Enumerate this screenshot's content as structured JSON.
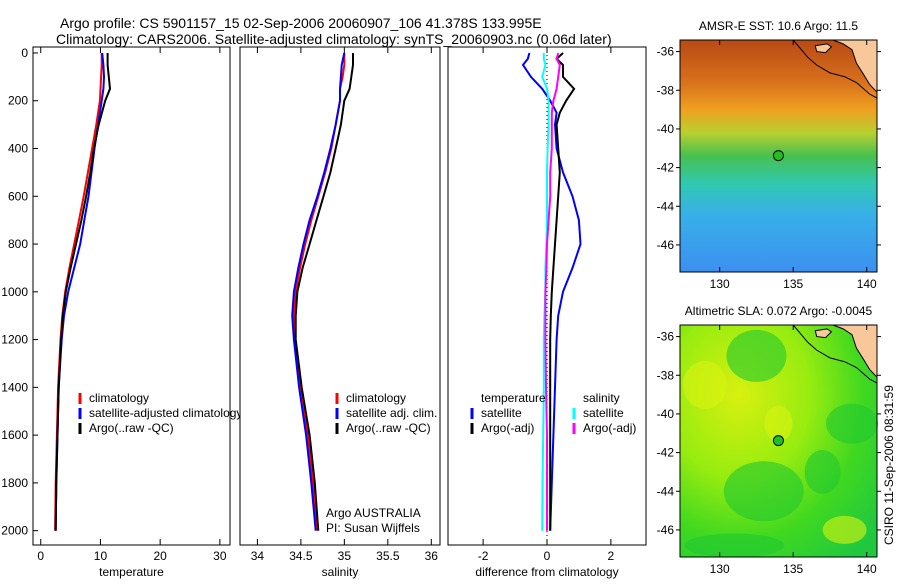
{
  "header": {
    "title_line1": "Argo profile: CS 5901157_15 02-Sep-2006 20060907_106 41.378S 133.995E",
    "title_line2": "Climatology: CARS2006. Satellite-adjusted climatology: synTS_20060903.nc (0.06d later)"
  },
  "footer": {
    "stamp": "CSIRO 11-Sep-2006 08:31:59"
  },
  "annotation": {
    "line1": "Argo AUSTRALIA",
    "line2": "PI: Susan Wijffels"
  },
  "chart_data": [
    {
      "type": "line",
      "id": "temperature",
      "xlabel": "temperature",
      "ylabel": "",
      "xlim": [
        -1.3,
        31.7
      ],
      "ylim": [
        2060,
        -25
      ],
      "xticks": [
        0,
        10,
        20,
        30
      ],
      "yticks": [
        0,
        200,
        400,
        600,
        800,
        1000,
        1200,
        1400,
        1600,
        1800,
        2000
      ],
      "depth": [
        0,
        50,
        100,
        150,
        200,
        300,
        400,
        500,
        600,
        700,
        800,
        900,
        1000,
        1100,
        1200,
        1400,
        1600,
        1800,
        2000
      ],
      "series": [
        {
          "name": "climatology",
          "color": "#ff0000",
          "values": [
            10.2,
            10.2,
            10.1,
            10.0,
            9.9,
            9.3,
            8.6,
            7.9,
            7.2,
            6.4,
            5.6,
            4.8,
            4.1,
            3.6,
            3.3,
            2.9,
            2.7,
            2.5,
            2.4
          ]
        },
        {
          "name": "satellite-adjusted climatology",
          "color": "#0000ff",
          "values": [
            10.3,
            10.5,
            10.6,
            10.5,
            10.2,
            9.6,
            9.0,
            8.5,
            8.0,
            7.3,
            6.6,
            5.6,
            4.6,
            3.9,
            3.5,
            3.0,
            2.8,
            2.6,
            2.5
          ]
        },
        {
          "name": "Argo(..raw -QC)",
          "color": "#000000",
          "values": [
            11.2,
            11.2,
            11.4,
            11.6,
            10.8,
            9.7,
            8.9,
            8.3,
            7.6,
            6.8,
            5.9,
            5.0,
            4.2,
            3.7,
            3.4,
            3.0,
            2.8,
            2.6,
            2.5
          ]
        }
      ],
      "legend": [
        {
          "label": "climatology",
          "color": "#ff0000"
        },
        {
          "label": "satellite-adjusted climatology",
          "color": "#0000ff"
        },
        {
          "label": "Argo(..raw -QC)",
          "color": "#000000"
        }
      ]
    },
    {
      "type": "line",
      "id": "salinity",
      "xlabel": "salinity",
      "ylabel": "",
      "xlim": [
        33.8,
        36.1
      ],
      "ylim": [
        2060,
        -25
      ],
      "xticks": [
        34,
        34.5,
        35,
        35.5,
        36
      ],
      "depth": [
        0,
        50,
        100,
        150,
        200,
        300,
        400,
        500,
        600,
        700,
        800,
        900,
        1000,
        1100,
        1200,
        1400,
        1600,
        1800,
        2000
      ],
      "series": [
        {
          "name": "climatology",
          "color": "#ff0000",
          "values": [
            35.0,
            35.0,
            34.98,
            34.95,
            34.95,
            34.9,
            34.85,
            34.78,
            34.7,
            34.62,
            34.55,
            34.49,
            34.44,
            34.42,
            34.43,
            34.5,
            34.58,
            34.64,
            34.68
          ]
        },
        {
          "name": "satellite adj. clim.",
          "color": "#0000ff",
          "values": [
            35.0,
            34.97,
            34.96,
            34.95,
            34.95,
            34.9,
            34.84,
            34.77,
            34.69,
            34.6,
            34.53,
            34.47,
            34.42,
            34.4,
            34.42,
            34.48,
            34.56,
            34.62,
            34.67
          ]
        },
        {
          "name": "Argo(..raw -QC)",
          "color": "#000000",
          "values": [
            35.1,
            35.1,
            35.08,
            35.06,
            35.0,
            34.96,
            34.9,
            34.84,
            34.76,
            34.68,
            34.6,
            34.52,
            34.46,
            34.44,
            34.44,
            34.51,
            34.6,
            34.66,
            34.7
          ]
        }
      ],
      "legend": [
        {
          "label": "climatology",
          "color": "#ff0000"
        },
        {
          "label": "satellite adj. clim.",
          "color": "#0000ff"
        },
        {
          "label": "Argo(..raw -QC)",
          "color": "#000000"
        }
      ]
    },
    {
      "type": "line",
      "id": "difference",
      "xlabel": "difference from climatology",
      "ylabel": "",
      "xlim": [
        -3.1,
        3.1
      ],
      "ylim": [
        2060,
        -25
      ],
      "xticks": [
        -2,
        0,
        2
      ],
      "depth": [
        0,
        25,
        50,
        100,
        150,
        200,
        250,
        300,
        400,
        500,
        600,
        700,
        800,
        900,
        1000,
        1100,
        1200,
        1400,
        1600,
        1800,
        2000
      ],
      "series": [
        {
          "name": "temperature satellite",
          "color": "#0000ff",
          "values": [
            -0.55,
            -0.6,
            -0.75,
            -0.5,
            -0.15,
            0.1,
            0.3,
            0.25,
            0.3,
            0.5,
            0.8,
            1.0,
            1.05,
            0.8,
            0.5,
            0.35,
            0.3,
            0.25,
            0.2,
            0.15,
            0.1
          ]
        },
        {
          "name": "temperature Argo(-adj)",
          "color": "#000000",
          "values": [
            0.5,
            0.3,
            0.5,
            0.5,
            0.85,
            0.6,
            0.4,
            0.3,
            0.35,
            0.4,
            0.35,
            0.3,
            0.25,
            0.2,
            0.15,
            0.12,
            0.1,
            0.1,
            0.1,
            0.1,
            0.1
          ]
        },
        {
          "name": "salinity satellite",
          "color": "#00ffff",
          "values": [
            -0.1,
            -0.1,
            -0.05,
            -0.15,
            0.0,
            0.05,
            0.05,
            0.05,
            0.02,
            0.0,
            0.0,
            0.0,
            -0.02,
            -0.05,
            -0.05,
            -0.08,
            -0.1,
            -0.1,
            -0.12,
            -0.14,
            -0.15
          ]
        },
        {
          "name": "salinity Argo(-adj)",
          "color": "#ff00ff",
          "values": [
            0.35,
            0.3,
            0.4,
            0.35,
            0.3,
            0.2,
            0.15,
            0.15,
            0.15,
            0.1,
            0.1,
            0.05,
            0.0,
            -0.02,
            -0.05,
            -0.05,
            -0.05,
            -0.03,
            0.0,
            0.0,
            0.0
          ]
        }
      ],
      "legend_headers": [
        "temperature",
        "salinity"
      ],
      "legend": [
        {
          "label": "satellite",
          "color": "#0000ff",
          "group": 0
        },
        {
          "label": "Argo(-adj)",
          "color": "#000000",
          "group": 0
        },
        {
          "label": "satellite",
          "color": "#00ffff",
          "group": 1
        },
        {
          "label": "Argo(-adj)",
          "color": "#ff00ff",
          "group": 1
        }
      ]
    },
    {
      "type": "heatmap",
      "id": "sst-map",
      "title": "AMSR-E SST: 10.6 Argo: 11.5",
      "xlim": [
        127.3,
        140.7
      ],
      "ylim": [
        -47.4,
        -35.4
      ],
      "xticks": [
        130,
        135,
        140
      ],
      "yticks": [
        -36,
        -38,
        -40,
        -42,
        -44,
        -46
      ],
      "float_position": {
        "lon": 133.995,
        "lat": -41.378
      }
    },
    {
      "type": "heatmap",
      "id": "sla-map",
      "title": "Altimetric SLA: 0.072 Argo: -0.0045",
      "xlim": [
        127.3,
        140.7
      ],
      "ylim": [
        -47.4,
        -35.4
      ],
      "xticks": [
        130,
        135,
        140
      ],
      "yticks": [
        -36,
        -38,
        -40,
        -42,
        -44,
        -46
      ],
      "float_position": {
        "lon": 133.995,
        "lat": -41.378
      }
    }
  ]
}
